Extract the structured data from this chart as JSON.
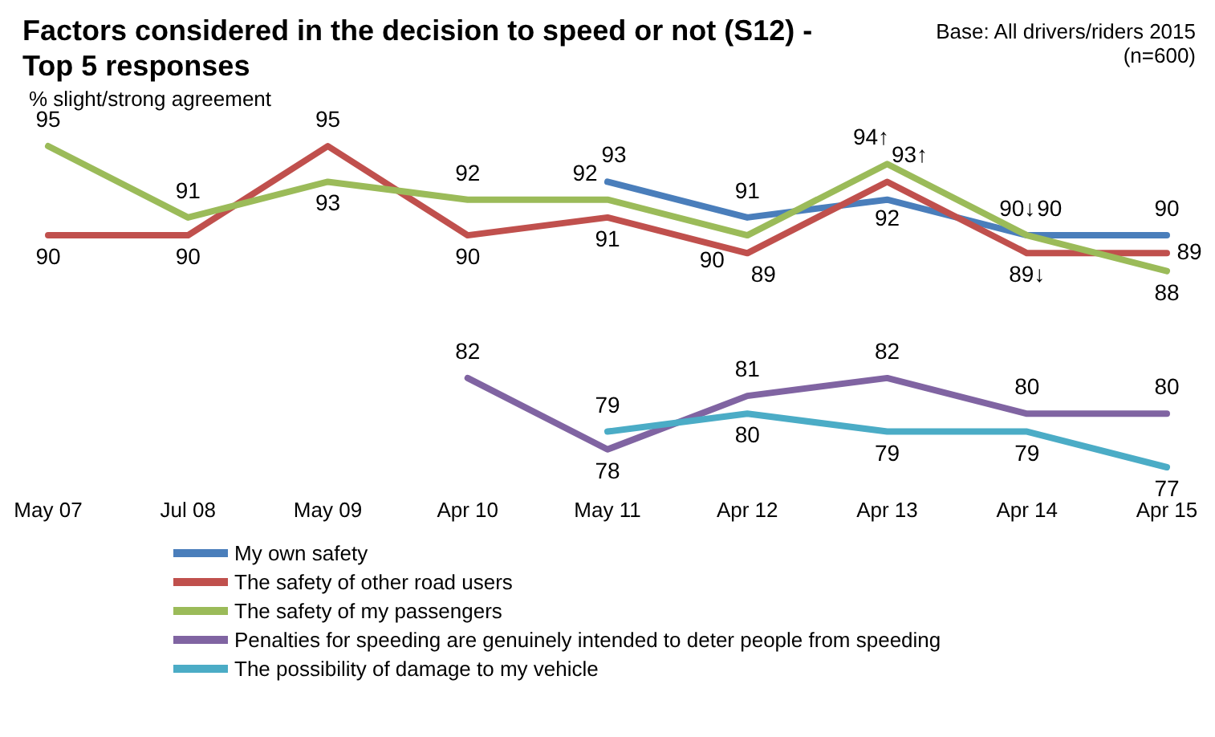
{
  "chart_data": {
    "type": "line",
    "title": "Factors considered in the decision to speed or not (S12) - Top 5 responses",
    "ylabel": "% slight/strong agreement",
    "annotations": [
      "Base: All drivers/riders 2015",
      "(n=600)"
    ],
    "categories": [
      "May 07",
      "Jul 08",
      "May 09",
      "Apr 10",
      "May 11",
      "Apr 12",
      "Apr 13",
      "Apr 14",
      "Apr 15"
    ],
    "series": [
      {
        "name": "My own safety",
        "color": "#4a7ebb",
        "values": [
          null,
          null,
          null,
          null,
          93,
          91,
          92,
          90,
          90
        ],
        "value_labels": [
          null,
          null,
          null,
          null,
          "93",
          "91",
          "92",
          "90",
          "90"
        ]
      },
      {
        "name": "The safety of other road users",
        "color": "#c0504d",
        "values": [
          90,
          90,
          95,
          90,
          91,
          89,
          93,
          89,
          89
        ],
        "value_labels": [
          "90",
          "90",
          "95",
          "90",
          "91",
          "89",
          "93↑",
          "89↓",
          "89"
        ]
      },
      {
        "name": "The safety of my passengers",
        "color": "#9bbb59",
        "values": [
          95,
          91,
          93,
          92,
          92,
          90,
          94,
          90,
          88
        ],
        "value_labels": [
          "95",
          "91",
          "93",
          "92",
          "92",
          "90",
          "94↑",
          "90↓",
          "88"
        ]
      },
      {
        "name": "Penalties for speeding are genuinely intended to deter people from speeding",
        "color": "#8064a2",
        "values": [
          null,
          null,
          null,
          82,
          78,
          81,
          82,
          80,
          80
        ],
        "value_labels": [
          null,
          null,
          null,
          "82",
          "78",
          "81",
          "82",
          "80",
          "80"
        ]
      },
      {
        "name": "The possibility of damage to my vehicle",
        "color": "#4bacc6",
        "values": [
          null,
          null,
          null,
          null,
          79,
          80,
          79,
          79,
          77
        ],
        "value_labels": [
          null,
          null,
          null,
          null,
          "79",
          "80",
          "79",
          "79",
          "77"
        ]
      }
    ],
    "legend": "bottom",
    "grid": false,
    "marker": "none",
    "line_style": "solid"
  }
}
